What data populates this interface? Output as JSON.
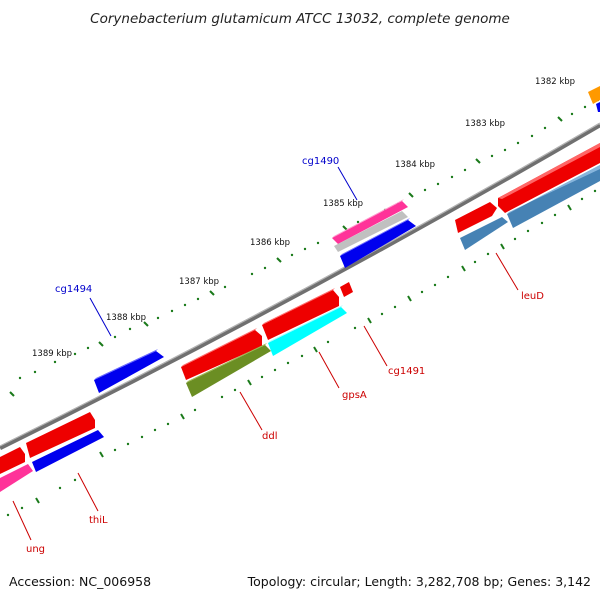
{
  "title": "Corynebacterium glutamicum ATCC 13032, complete genome",
  "footer": {
    "accession": "Accession: NC_006958",
    "stats": "Topology: circular; Length: 3,282,708 bp; Genes: 3,142"
  },
  "ticks": [
    "1382 kbp",
    "1383 kbp",
    "1384 kbp",
    "1385 kbp",
    "1386 kbp",
    "1387 kbp",
    "1388 kbp",
    "1389 kbp"
  ],
  "gene_labels": {
    "cg1490": "cg1490",
    "cg1494": "cg1494",
    "leuD": "leuD",
    "cg1491": "cg1491",
    "gpsA": "gpsA",
    "ddl": "ddl",
    "thiL": "thiL",
    "ung": "ung"
  },
  "colors": {
    "forward_gene": "#ff0000",
    "reverse_gene": "#0000ee",
    "trna_gene": "#ff3399",
    "cyan_gene": "#00ffff",
    "olive_gene": "#6b8e23",
    "steel_gene": "#4682b4",
    "orange_gene": "#ff9900",
    "backbone": "#808080",
    "tick": "#1a7a1a",
    "label_forward": "#cc0000",
    "label_reverse": "#0000cc"
  }
}
